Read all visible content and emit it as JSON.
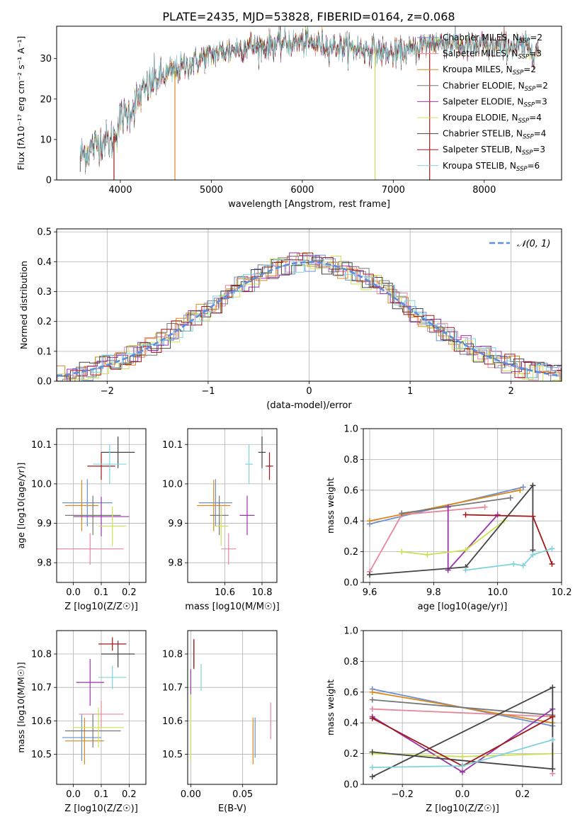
{
  "title": "PLATE=2435, MJD=53828, FIBERID=0164, z=0.068",
  "legend_colors": [
    "#6b8fd0",
    "#e8879c",
    "#d8891a",
    "#777777",
    "#9933aa",
    "#cde052",
    "#444444",
    "#a01818",
    "#7fd4dc"
  ],
  "chart_data": [
    {
      "type": "line",
      "id": "spectrum",
      "xlabel": "wavelength [Angstrom, rest frame]",
      "ylabel": "Flux [fλ10⁻¹⁷ erg cm⁻² s⁻¹ A⁻¹]",
      "xlim": [
        3300,
        8850
      ],
      "ylim": [
        0,
        38
      ],
      "xticks": [
        4000,
        5000,
        6000,
        7000,
        8000
      ],
      "yticks": [
        0,
        10,
        20,
        30
      ],
      "grid": false,
      "legend_position": "right",
      "series": [
        {
          "name": "Chabrier MILES, N_SSP=2",
          "label": "Chabrier MILES, N",
          "sub": "SSP",
          "suffix": "=2"
        },
        {
          "name": "Salpeter MILES, N_SSP=3",
          "label": "Salpeter MILES, N",
          "sub": "SSP",
          "suffix": "=3"
        },
        {
          "name": "Kroupa MILES, N_SSP=2",
          "label": "Kroupa MILES, N",
          "sub": "SSP",
          "suffix": "=2"
        },
        {
          "name": "Chabrier ELODIE, N_SSP=2",
          "label": "Chabrier ELODIE, N",
          "sub": "SSP",
          "suffix": "=2"
        },
        {
          "name": "Salpeter ELODIE, N_SSP=3",
          "label": "Salpeter ELODIE, N",
          "sub": "SSP",
          "suffix": "=3"
        },
        {
          "name": "Kroupa ELODIE, N_SSP=4",
          "label": "Kroupa ELODIE, N",
          "sub": "SSP",
          "suffix": "=4"
        },
        {
          "name": "Chabrier STELIB, N_SSP=4",
          "label": "Chabrier STELIB, N",
          "sub": "SSP",
          "suffix": "=4"
        },
        {
          "name": "Salpeter STELIB, N_SSP=3",
          "label": "Salpeter STELIB, N",
          "sub": "SSP",
          "suffix": "=3"
        },
        {
          "name": "Kroupa STELIB, N_SSP=6",
          "label": "Kroupa STELIB, N",
          "sub": "SSP",
          "suffix": "=6"
        }
      ],
      "continuum": {
        "x": [
          3560,
          3700,
          3800,
          3900,
          3950,
          4000,
          4100,
          4200,
          4300,
          4400,
          4500,
          4600,
          4700,
          4800,
          4900,
          5000,
          5200,
          5400,
          5600,
          5800,
          6000,
          6200,
          6400,
          6600,
          6800,
          7000,
          7200,
          7400,
          7600,
          7800,
          8000,
          8200,
          8400,
          8600
        ],
        "y": [
          6,
          8,
          10,
          9,
          12,
          15,
          17,
          20,
          23,
          25,
          26,
          27,
          28,
          29,
          30,
          31,
          32,
          33,
          33,
          34,
          34,
          33.5,
          33,
          32.5,
          32,
          31,
          32,
          34,
          34,
          33,
          33,
          33,
          33,
          32
        ]
      },
      "dropouts": [
        {
          "x": 3560,
          "y": 2
        },
        {
          "x": 3930,
          "y": 0
        },
        {
          "x": 4600,
          "y": 0
        },
        {
          "x": 6800,
          "y": 0
        },
        {
          "x": 7400,
          "y": 0
        }
      ]
    },
    {
      "type": "histogram",
      "id": "residuals",
      "xlabel": "(data-model)/error",
      "ylabel": "Normed distribution",
      "xlim": [
        -2.5,
        2.5
      ],
      "ylim": [
        0,
        0.51
      ],
      "xticks": [
        -2,
        -1,
        0,
        1,
        2
      ],
      "yticks": [
        0.0,
        0.1,
        0.2,
        0.3,
        0.4,
        0.5
      ],
      "grid": true,
      "bin_width": 0.1,
      "reference": {
        "name": "N(0,1)",
        "label": "𝒩(0, 1)",
        "mean": 0,
        "sigma": 1,
        "color": "#5b8de0"
      },
      "legend_position": "top-right"
    },
    {
      "type": "errorbar",
      "id": "age-vs-Z",
      "xlabel": "Z [log10(Z/Z☉)]",
      "ylabel": "age [log10(age/yr)]",
      "xlim": [
        -0.06,
        0.26
      ],
      "ylim": [
        9.75,
        10.14
      ],
      "xticks": [
        0.0,
        0.1,
        0.2
      ],
      "yticks": [
        9.8,
        9.9,
        10.0,
        10.1
      ],
      "grid": true,
      "points": [
        {
          "x": 0.05,
          "y": 9.952,
          "xerr": 0.09,
          "yerr": 0.06,
          "color": 0
        },
        {
          "x": 0.06,
          "y": 9.835,
          "xerr": 0.12,
          "yerr": 0.04,
          "color": 1
        },
        {
          "x": 0.03,
          "y": 9.945,
          "xerr": 0.06,
          "yerr": 0.065,
          "color": 2
        },
        {
          "x": 0.07,
          "y": 9.92,
          "xerr": 0.1,
          "yerr": 0.05,
          "color": 3
        },
        {
          "x": 0.1,
          "y": 9.917,
          "xerr": 0.1,
          "yerr": 0.05,
          "color": 4
        },
        {
          "x": 0.14,
          "y": 9.893,
          "xerr": 0.05,
          "yerr": 0.05,
          "color": 5
        },
        {
          "x": 0.16,
          "y": 10.08,
          "xerr": 0.06,
          "yerr": 0.04,
          "color": 6
        },
        {
          "x": 0.1,
          "y": 10.045,
          "xerr": 0.05,
          "yerr": 0.035,
          "color": 7
        },
        {
          "x": 0.13,
          "y": 10.05,
          "xerr": 0.06,
          "yerr": 0.05,
          "color": 8
        }
      ]
    },
    {
      "type": "errorbar",
      "id": "age-vs-mass",
      "xlabel": "mass [log10(M/M☉)]",
      "ylabel": "",
      "xlim": [
        10.4,
        10.88
      ],
      "ylim": [
        9.75,
        10.14
      ],
      "xticks": [
        10.6,
        10.8
      ],
      "yticks": [
        9.8,
        9.9,
        10.0,
        10.1
      ],
      "grid": true,
      "points": [
        {
          "x": 10.55,
          "y": 9.952,
          "xerr": 0.09,
          "yerr": 0.06,
          "color": 0
        },
        {
          "x": 10.62,
          "y": 9.835,
          "xerr": 0.04,
          "yerr": 0.04,
          "color": 1
        },
        {
          "x": 10.54,
          "y": 9.945,
          "xerr": 0.09,
          "yerr": 0.065,
          "color": 2
        },
        {
          "x": 10.57,
          "y": 9.92,
          "xerr": 0.05,
          "yerr": 0.05,
          "color": 3
        },
        {
          "x": 10.72,
          "y": 9.92,
          "xerr": 0.04,
          "yerr": 0.05,
          "color": 4
        },
        {
          "x": 10.58,
          "y": 9.893,
          "xerr": 0.04,
          "yerr": 0.05,
          "color": 5
        },
        {
          "x": 10.8,
          "y": 10.08,
          "xerr": 0.02,
          "yerr": 0.04,
          "color": 6
        },
        {
          "x": 10.84,
          "y": 10.045,
          "xerr": 0.02,
          "yerr": 0.035,
          "color": 7
        },
        {
          "x": 10.73,
          "y": 10.05,
          "xerr": 0.02,
          "yerr": 0.05,
          "color": 8
        }
      ]
    },
    {
      "type": "line",
      "id": "weight-vs-age",
      "xlabel": "age [log10(age/yr)]",
      "ylabel": "mass weight",
      "xlim": [
        9.58,
        10.2
      ],
      "ylim": [
        0,
        1
      ],
      "xticks": [
        9.6,
        9.8,
        10.0,
        10.2
      ],
      "yticks": [
        0.0,
        0.2,
        0.4,
        0.6,
        0.8,
        1.0
      ],
      "grid": true,
      "series": [
        {
          "color": 0,
          "x": [
            9.6,
            10.08
          ],
          "y": [
            0.38,
            0.62
          ]
        },
        {
          "color": 1,
          "x": [
            9.6,
            9.7,
            9.96
          ],
          "y": [
            0.07,
            0.44,
            0.49
          ]
        },
        {
          "color": 2,
          "x": [
            9.6,
            10.07
          ],
          "y": [
            0.4,
            0.6
          ]
        },
        {
          "color": 3,
          "x": [
            9.7,
            10.04
          ],
          "y": [
            0.45,
            0.55
          ]
        },
        {
          "color": 4,
          "x": [
            9.845,
            9.845,
            10.0
          ],
          "y": [
            0.49,
            0.08,
            0.44
          ]
        },
        {
          "color": 5,
          "x": [
            9.7,
            9.78,
            9.9,
            10.02
          ],
          "y": [
            0.2,
            0.18,
            0.21,
            0.4
          ]
        },
        {
          "color": 6,
          "x": [
            9.6,
            9.9,
            10.11,
            10.11
          ],
          "y": [
            0.05,
            0.1,
            0.63,
            0.21
          ]
        },
        {
          "color": 7,
          "x": [
            9.9,
            10.11,
            10.17
          ],
          "y": [
            0.44,
            0.43,
            0.12
          ]
        },
        {
          "color": 8,
          "x": [
            9.9,
            10.05,
            10.08,
            10.11,
            10.17
          ],
          "y": [
            0.08,
            0.12,
            0.11,
            0.18,
            0.22
          ]
        }
      ]
    },
    {
      "type": "errorbar",
      "id": "mass-vs-Z",
      "xlabel": "Z [log10(Z/Z☉)]",
      "ylabel": "mass [log10(M/M☉)]",
      "xlim": [
        -0.06,
        0.26
      ],
      "ylim": [
        10.41,
        10.87
      ],
      "xticks": [
        0.0,
        0.1,
        0.2
      ],
      "yticks": [
        10.5,
        10.6,
        10.7,
        10.8
      ],
      "grid": true,
      "points": [
        {
          "x": 0.03,
          "y": 10.55,
          "xerr": 0.07,
          "yerr": 0.07,
          "color": 0
        },
        {
          "x": 0.1,
          "y": 10.62,
          "xerr": 0.08,
          "yerr": 0.04,
          "color": 1
        },
        {
          "x": 0.04,
          "y": 10.54,
          "xerr": 0.07,
          "yerr": 0.07,
          "color": 2
        },
        {
          "x": 0.07,
          "y": 10.57,
          "xerr": 0.1,
          "yerr": 0.05,
          "color": 3
        },
        {
          "x": 0.06,
          "y": 10.715,
          "xerr": 0.05,
          "yerr": 0.07,
          "color": 4
        },
        {
          "x": 0.09,
          "y": 10.58,
          "xerr": 0.09,
          "yerr": 0.06,
          "color": 5
        },
        {
          "x": 0.16,
          "y": 10.8,
          "xerr": 0.06,
          "yerr": 0.04,
          "color": 6
        },
        {
          "x": 0.14,
          "y": 10.83,
          "xerr": 0.05,
          "yerr": 0.02,
          "color": 7
        },
        {
          "x": 0.14,
          "y": 10.73,
          "xerr": 0.05,
          "yerr": 0.035,
          "color": 8
        }
      ]
    },
    {
      "type": "errorbar",
      "id": "mass-vs-EBV",
      "xlabel": "E(B-V)",
      "ylabel": "",
      "xlim": [
        -0.003,
        0.083
      ],
      "ylim": [
        10.41,
        10.87
      ],
      "xticks": [
        0.0,
        0.05
      ],
      "xtick_labels": [
        "0.00",
        "0.05"
      ],
      "yticks": [
        10.5,
        10.6,
        10.7,
        10.8
      ],
      "grid": true,
      "points": [
        {
          "x": 0.062,
          "y": 10.55,
          "xerr": 0.0,
          "yerr": 0.06,
          "color": 0
        },
        {
          "x": 0.077,
          "y": 10.6,
          "xerr": 0.0,
          "yerr": 0.055,
          "color": 1
        },
        {
          "x": 0.06,
          "y": 10.54,
          "xerr": 0.0,
          "yerr": 0.07,
          "color": 2
        },
        {
          "x": 0.0,
          "y": 10.715,
          "xerr": 0.0,
          "yerr": 0.04,
          "color": 4
        },
        {
          "x": 0.0,
          "y": 10.58,
          "xerr": 0.0,
          "yerr": 0.1,
          "color": 5
        },
        {
          "x": 0.003,
          "y": 10.8,
          "xerr": 0.0,
          "yerr": 0.04,
          "color": 6
        },
        {
          "x": 0.003,
          "y": 10.8,
          "xerr": 0.0,
          "yerr": 0.045,
          "color": 7
        },
        {
          "x": 0.01,
          "y": 10.73,
          "xerr": 0.0,
          "yerr": 0.04,
          "color": 8
        }
      ]
    },
    {
      "type": "line",
      "id": "weight-vs-Z",
      "xlabel": "Z [log10(Z/Z☉)]",
      "ylabel": "mass weight",
      "xlim": [
        -0.33,
        0.33
      ],
      "ylim": [
        0,
        1
      ],
      "xticks": [
        -0.2,
        0.0,
        0.2
      ],
      "xtick_labels": [
        "−0.2",
        "0.0",
        "0.2"
      ],
      "yticks": [
        0.0,
        0.2,
        0.4,
        0.6,
        0.8,
        1.0
      ],
      "grid": true,
      "series": [
        {
          "color": 0,
          "x": [
            -0.3,
            0.3
          ],
          "y": [
            0.62,
            0.38
          ]
        },
        {
          "color": 1,
          "x": [
            -0.3,
            0.3,
            0.3
          ],
          "y": [
            0.49,
            0.44,
            0.07
          ]
        },
        {
          "color": 2,
          "x": [
            -0.3,
            0.3
          ],
          "y": [
            0.6,
            0.4
          ]
        },
        {
          "color": 3,
          "x": [
            -0.3,
            0.3
          ],
          "y": [
            0.55,
            0.45
          ]
        },
        {
          "color": 4,
          "x": [
            -0.3,
            0.0,
            0.3
          ],
          "y": [
            0.44,
            0.08,
            0.49
          ]
        },
        {
          "color": 5,
          "x": [
            -0.3,
            0.0,
            0.3
          ],
          "y": [
            0.2,
            0.18,
            0.2
          ]
        },
        {
          "color": 6,
          "x": [
            -0.3,
            0.3,
            0.3,
            -0.3
          ],
          "y": [
            0.05,
            0.63,
            0.1,
            0.21
          ]
        },
        {
          "color": 7,
          "x": [
            -0.3,
            0.0,
            0.3
          ],
          "y": [
            0.43,
            0.12,
            0.44
          ]
        },
        {
          "color": 8,
          "x": [
            -0.3,
            0.0,
            0.3
          ],
          "y": [
            0.11,
            0.12,
            0.29
          ]
        }
      ]
    }
  ]
}
